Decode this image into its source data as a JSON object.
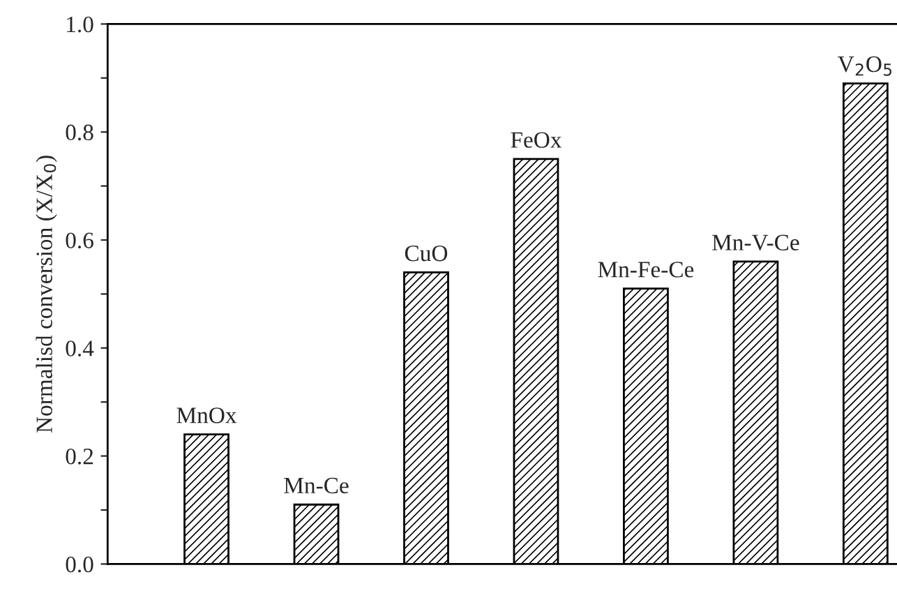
{
  "chart_data": {
    "type": "bar",
    "ylabel": "Normalisd conversion (X/X$_{0}$)",
    "categories": [
      "MnOx",
      "Mn-Ce",
      "CuO",
      "FeOx",
      "Mn-Fe-Ce",
      "Mn-V-Ce",
      "V$_{2}$O$_{5}$"
    ],
    "values": [
      0.24,
      0.11,
      0.54,
      0.75,
      0.51,
      0.56,
      0.89
    ],
    "color": "#000000",
    "ylim": [
      0,
      1.0
    ],
    "yticks": [
      {
        "value": 0.0,
        "label": "0.0"
      },
      {
        "value": 0.1,
        "label": null
      },
      {
        "value": 0.2,
        "label": "0.2"
      },
      {
        "value": 0.3,
        "label": null
      },
      {
        "value": 0.4,
        "label": "0.4"
      },
      {
        "value": 0.5,
        "label": null
      },
      {
        "value": 0.6,
        "label": "0.6"
      },
      {
        "value": 0.7,
        "label": null
      },
      {
        "value": 0.8,
        "label": "0.8"
      },
      {
        "value": 0.9,
        "label": null
      },
      {
        "value": 1.0,
        "label": "1.0"
      }
    ],
    "grid": false
  }
}
